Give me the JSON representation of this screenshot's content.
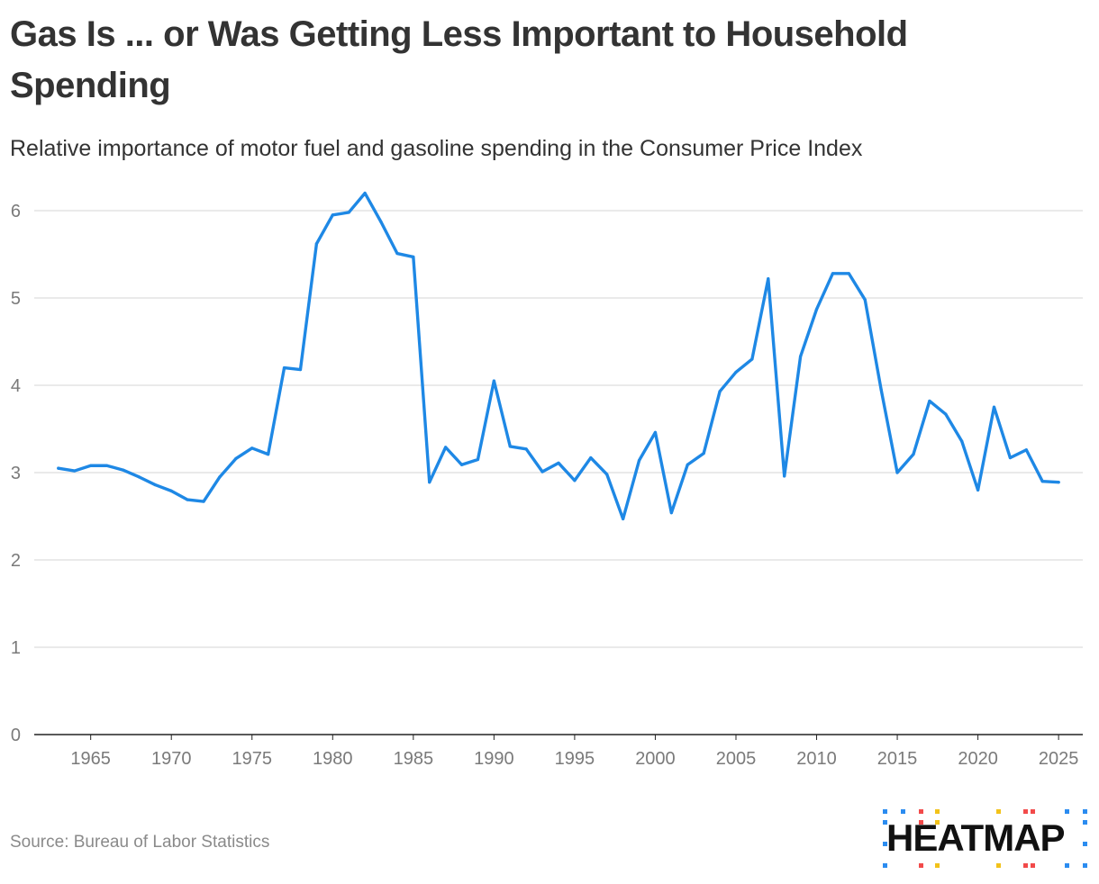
{
  "title": "Gas Is ... or Was Getting Less Important to Household Spending",
  "subtitle": "Relative importance of motor fuel and gasoline spending in the Consumer Price Index",
  "source": "Source: Bureau of Labor Statistics",
  "brand": {
    "name": "HEATMAP",
    "colors": [
      "#2b8cf0",
      "#f24a4a",
      "#f2c21a"
    ]
  },
  "colors": {
    "line": "#1e88e5",
    "grid": "#dedede",
    "axis": "#222222",
    "tick": "#7a7a7a"
  },
  "chart_data": {
    "type": "line",
    "title": "Gas Is ... or Was Getting Less Important to Household Spending",
    "xlabel": "",
    "ylabel": "",
    "xlim": [
      1961.5,
      2026.5
    ],
    "ylim": [
      0,
      6
    ],
    "yticks": [
      "0",
      "1",
      "2",
      "3",
      "4",
      "5",
      "6"
    ],
    "xticks": [
      "1965",
      "1970",
      "1975",
      "1980",
      "1985",
      "1990",
      "1995",
      "2000",
      "2005",
      "2010",
      "2015",
      "2020",
      "2025"
    ],
    "grid": true,
    "series": [
      {
        "name": "Relative importance of motor fuel",
        "x": [
          1963,
          1964,
          1965,
          1966,
          1967,
          1968,
          1969,
          1970,
          1971,
          1972,
          1973,
          1974,
          1975,
          1976,
          1977,
          1978,
          1979,
          1980,
          1981,
          1982,
          1983,
          1984,
          1985,
          1986,
          1987,
          1988,
          1989,
          1990,
          1991,
          1992,
          1993,
          1994,
          1995,
          1996,
          1997,
          1998,
          1999,
          2000,
          2001,
          2002,
          2003,
          2004,
          2005,
          2006,
          2007,
          2008,
          2009,
          2010,
          2011,
          2012,
          2013,
          2014,
          2015,
          2016,
          2017,
          2018,
          2019,
          2020,
          2021,
          2022,
          2023,
          2024,
          2025
        ],
        "values": [
          3.05,
          3.02,
          3.08,
          3.08,
          3.03,
          2.95,
          2.86,
          2.79,
          2.69,
          2.67,
          2.95,
          3.16,
          3.28,
          3.21,
          4.2,
          4.18,
          5.62,
          5.95,
          5.98,
          6.2,
          5.87,
          5.51,
          5.47,
          2.89,
          3.29,
          3.09,
          3.15,
          4.05,
          3.3,
          3.27,
          3.01,
          3.11,
          2.91,
          3.17,
          2.98,
          2.47,
          3.14,
          3.46,
          2.54,
          3.09,
          3.22,
          3.93,
          4.15,
          4.3,
          5.22,
          2.96,
          4.33,
          4.87,
          5.28,
          5.28,
          4.98,
          3.95,
          3.0,
          3.21,
          3.82,
          3.67,
          3.36,
          2.8,
          3.75,
          3.17,
          3.26,
          2.9,
          2.89
        ]
      }
    ]
  }
}
